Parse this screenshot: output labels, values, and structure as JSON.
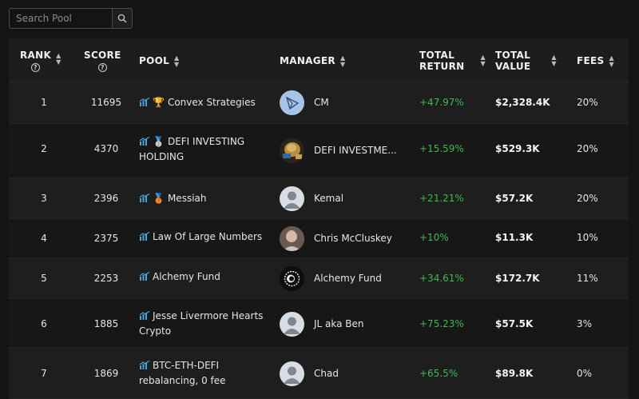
{
  "search": {
    "placeholder": "Search Pool"
  },
  "headers": {
    "rank": "RANK",
    "score": "SCORE",
    "pool": "POOL",
    "manager": "MANAGER",
    "total_return_l1": "TOTAL",
    "total_return_l2": "RETURN",
    "total_value_l1": "TOTAL",
    "total_value_l2": "VALUE",
    "fees": "FEES"
  },
  "rows": [
    {
      "rank": "1",
      "score": "11695",
      "pool_l1": "Convex Strategies",
      "pool_l2": "",
      "medal": "trophy",
      "manager": "CM",
      "avatar": "convex-logo",
      "total_return": "+47.97%",
      "total_value": "$2,328.4K",
      "fees": "20%"
    },
    {
      "rank": "2",
      "score": "4370",
      "pool_l1": "DEFI INVESTING",
      "pool_l2": "HOLDING",
      "medal": "silver-medal",
      "manager": "DEFI INVESTME...",
      "avatar": "photo",
      "total_return": "+15.59%",
      "total_value": "$529.3K",
      "fees": "20%"
    },
    {
      "rank": "3",
      "score": "2396",
      "pool_l1": "Messiah",
      "pool_l2": "",
      "medal": "bronze-medal",
      "manager": "Kemal",
      "avatar": "default-user",
      "total_return": "+21.21%",
      "total_value": "$57.2K",
      "fees": "20%"
    },
    {
      "rank": "4",
      "score": "2375",
      "pool_l1": "Law Of Large Numbers",
      "pool_l2": "",
      "medal": "",
      "manager": "Chris McCluskey",
      "avatar": "photo",
      "total_return": "+10%",
      "total_value": "$11.3K",
      "fees": "10%"
    },
    {
      "rank": "5",
      "score": "2253",
      "pool_l1": "Alchemy Fund",
      "pool_l2": "",
      "medal": "",
      "manager": "Alchemy Fund",
      "avatar": "alchemy-logo",
      "total_return": "+34.61%",
      "total_value": "$172.7K",
      "fees": "11%"
    },
    {
      "rank": "6",
      "score": "1885",
      "pool_l1": "Jesse Livermore Hearts",
      "pool_l2": "Crypto",
      "medal": "",
      "manager": "JL aka Ben",
      "avatar": "default-user",
      "total_return": "+75.23%",
      "total_value": "$57.5K",
      "fees": "3%"
    },
    {
      "rank": "7",
      "score": "1869",
      "pool_l1": "BTC-ETH-DEFI",
      "pool_l2": "rebalancing, 0 fee",
      "medal": "",
      "manager": "Chad",
      "avatar": "default-user",
      "total_return": "+65.5%",
      "total_value": "$89.8K",
      "fees": "0%"
    }
  ],
  "colors": {
    "positive": "#3fb950",
    "accent": "#4aa3df",
    "background": "#141414"
  }
}
